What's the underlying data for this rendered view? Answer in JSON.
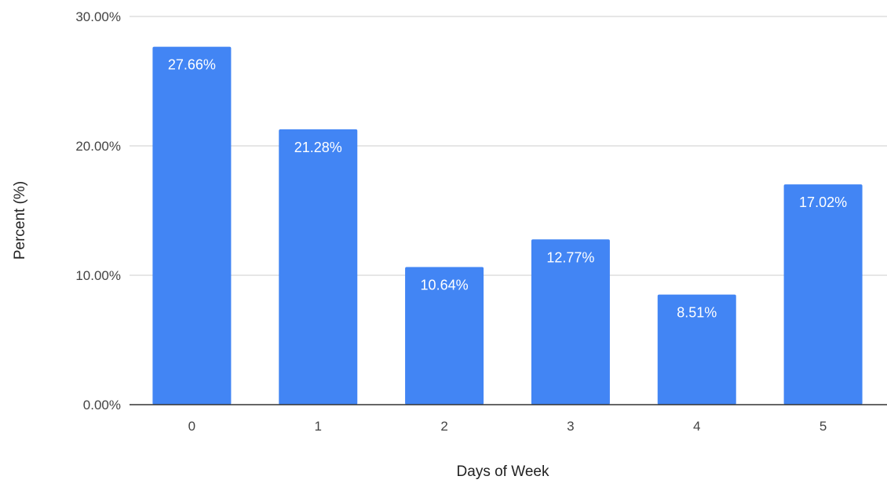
{
  "chart_data": {
    "type": "bar",
    "title": "",
    "xlabel": "Days of Week",
    "ylabel": "Percent (%)",
    "categories": [
      "0",
      "1",
      "2",
      "3",
      "4",
      "5"
    ],
    "values": [
      27.66,
      21.28,
      10.64,
      12.77,
      8.51,
      17.02
    ],
    "value_labels": [
      "27.66%",
      "21.28%",
      "10.64%",
      "12.77%",
      "8.51%",
      "17.02%"
    ],
    "y_ticks": [
      0,
      10,
      20,
      30
    ],
    "y_tick_labels": [
      "0.00%",
      "10.00%",
      "20.00%",
      "30.00%"
    ],
    "ylim": [
      0,
      30
    ],
    "grid": true,
    "legend": "none",
    "colors": {
      "bar": "#4285f4",
      "gridline": "#cccccc",
      "baseline": "#333333",
      "tick_text": "#444444",
      "axis_title_text": "#222222",
      "data_label_text": "#ffffff"
    }
  }
}
